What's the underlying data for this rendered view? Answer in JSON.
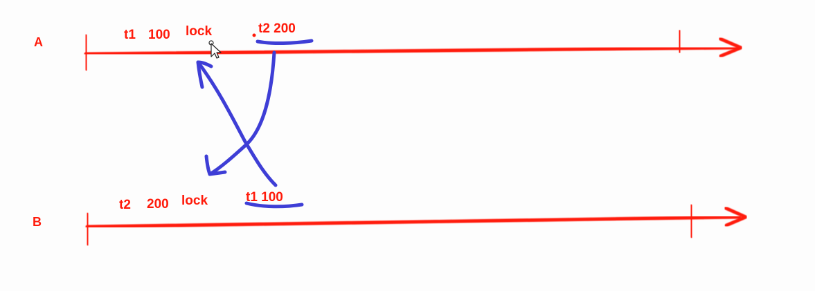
{
  "colors": {
    "timeline": "#ff1a0a",
    "annotation": "#3e3ed6",
    "background": "#fdfdfd"
  },
  "lanes": [
    {
      "label": "A",
      "events": [
        {
          "text": "t1"
        },
        {
          "text": "100"
        },
        {
          "text": "lock"
        },
        {
          "text": "t2 200"
        }
      ]
    },
    {
      "label": "B",
      "events": [
        {
          "text": "t2"
        },
        {
          "text": "200"
        },
        {
          "text": "lock"
        },
        {
          "text": "t1 100"
        }
      ]
    }
  ],
  "cursor": "mouse-pointer-icon"
}
